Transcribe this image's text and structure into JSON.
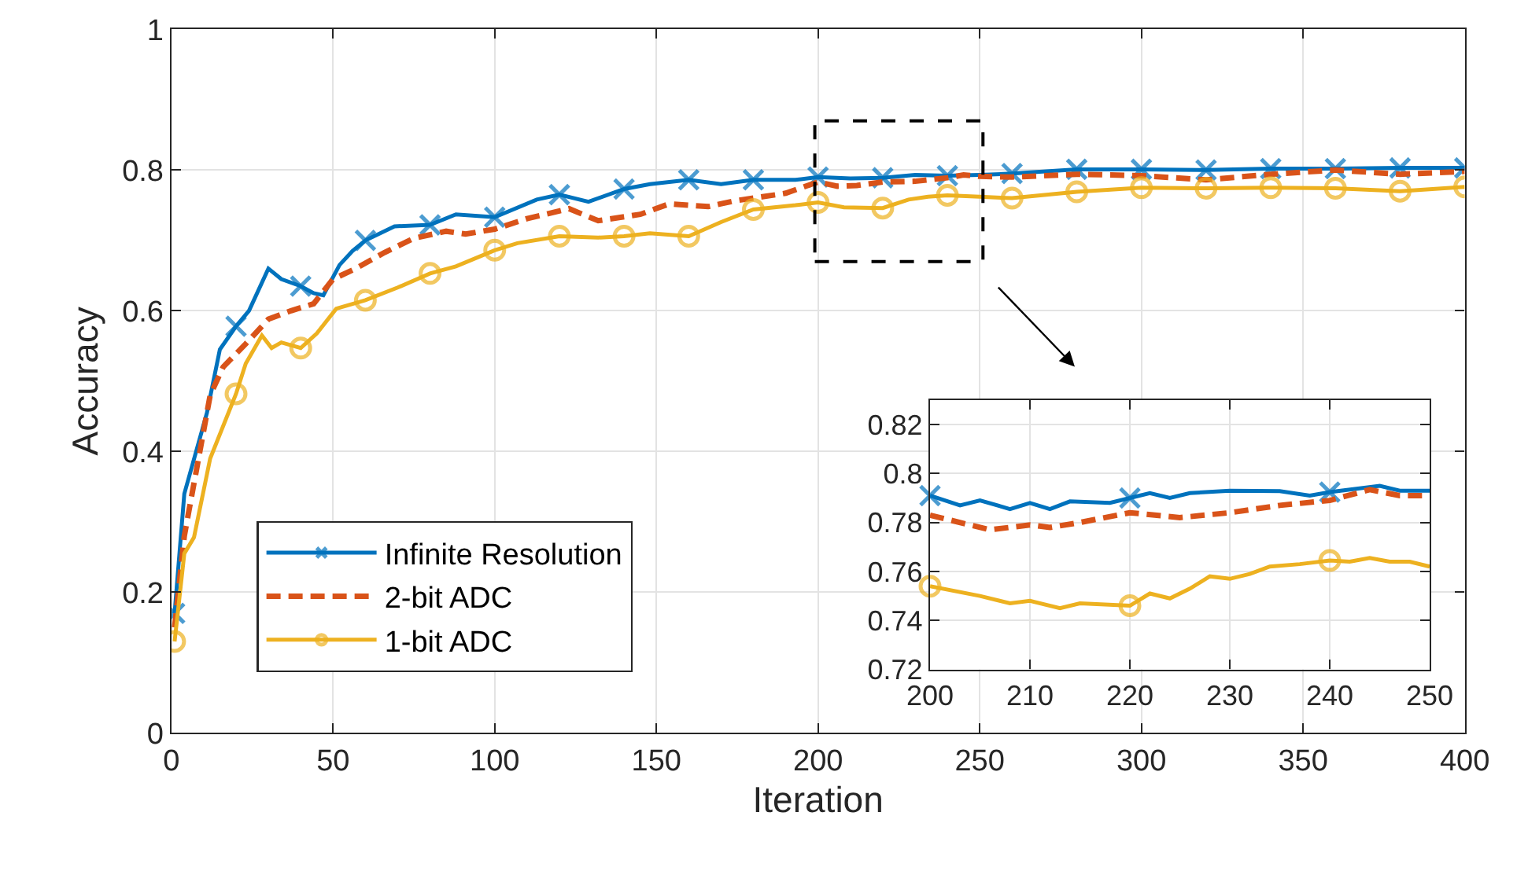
{
  "chart_data": [
    {
      "type": "line",
      "xlabel": "Iteration",
      "ylabel": "Accuracy",
      "xlim": [
        0,
        400
      ],
      "xticks": [
        0,
        50,
        100,
        150,
        200,
        250,
        300,
        350,
        400
      ],
      "ylim": [
        0,
        1
      ],
      "yticks": [
        0,
        0.2,
        0.4,
        0.6,
        0.8,
        1
      ],
      "grid": true,
      "legend": "bottom left",
      "series": [
        {
          "name": "Infinite Resolution",
          "color": "#0072bd",
          "marker": "cross",
          "line_style": "solid",
          "x": [
            1,
            4,
            11,
            15,
            20,
            24,
            30,
            34,
            40,
            44,
            47,
            52,
            56,
            60,
            69,
            80,
            88,
            100,
            113,
            120,
            129,
            140,
            148,
            160,
            170,
            180,
            193,
            200,
            210,
            220,
            230,
            240,
            250,
            260,
            280,
            300,
            320,
            340,
            360,
            380,
            400
          ],
          "values": [
            0.17,
            0.34,
            0.455,
            0.545,
            0.578,
            0.6,
            0.66,
            0.645,
            0.635,
            0.625,
            0.622,
            0.665,
            0.685,
            0.7,
            0.72,
            0.722,
            0.737,
            0.733,
            0.758,
            0.765,
            0.755,
            0.773,
            0.78,
            0.786,
            0.78,
            0.786,
            0.786,
            0.79,
            0.788,
            0.789,
            0.793,
            0.792,
            0.793,
            0.795,
            0.801,
            0.801,
            0.8,
            0.802,
            0.802,
            0.803,
            0.803
          ]
        },
        {
          "name": "2-bit ADC",
          "color": "#d95319",
          "marker": "none",
          "line_style": "dashed",
          "x": [
            1,
            4,
            8,
            12,
            16,
            23,
            30,
            37,
            44,
            50,
            57,
            66,
            75,
            85,
            91,
            100,
            110,
            123,
            132,
            145,
            154,
            166,
            174,
            190,
            198,
            200,
            206,
            212,
            220,
            230,
            240,
            245,
            250,
            260,
            280,
            300,
            320,
            340,
            360,
            380,
            400
          ],
          "values": [
            0.15,
            0.28,
            0.38,
            0.48,
            0.52,
            0.553,
            0.588,
            0.6,
            0.61,
            0.645,
            0.66,
            0.683,
            0.703,
            0.713,
            0.709,
            0.716,
            0.731,
            0.745,
            0.728,
            0.737,
            0.752,
            0.748,
            0.756,
            0.767,
            0.78,
            0.783,
            0.777,
            0.778,
            0.783,
            0.784,
            0.789,
            0.793,
            0.791,
            0.79,
            0.794,
            0.792,
            0.786,
            0.794,
            0.8,
            0.794,
            0.798
          ]
        },
        {
          "name": "1-bit ADC",
          "color": "#edb120",
          "marker": "circle",
          "line_style": "solid",
          "x": [
            1,
            4,
            7,
            12,
            20,
            23,
            28,
            31,
            34,
            40,
            45,
            51,
            60,
            70,
            80,
            88,
            100,
            107,
            120,
            132,
            140,
            148,
            160,
            170,
            180,
            193,
            200,
            208,
            220,
            228,
            234,
            240,
            250,
            260,
            280,
            300,
            320,
            340,
            360,
            380,
            400
          ],
          "values": [
            0.13,
            0.255,
            0.278,
            0.39,
            0.482,
            0.525,
            0.565,
            0.547,
            0.555,
            0.547,
            0.568,
            0.603,
            0.615,
            0.633,
            0.653,
            0.663,
            0.686,
            0.696,
            0.706,
            0.704,
            0.706,
            0.71,
            0.706,
            0.726,
            0.744,
            0.75,
            0.754,
            0.747,
            0.746,
            0.758,
            0.762,
            0.764,
            0.762,
            0.76,
            0.769,
            0.775,
            0.774,
            0.775,
            0.774,
            0.77,
            0.776
          ]
        }
      ]
    },
    {
      "type": "line",
      "xlim": [
        200,
        250
      ],
      "xticks": [
        200,
        210,
        220,
        230,
        240,
        250
      ],
      "ylim": [
        0.72,
        0.83
      ],
      "yticks": [
        0.72,
        0.74,
        0.76,
        0.78,
        0.8,
        0.82
      ],
      "grid": true,
      "series": [
        {
          "color": "#0072bd",
          "line_style": "solid",
          "x": [
            200,
            203,
            205,
            208,
            210,
            212,
            214,
            218,
            220,
            222,
            224,
            226,
            230,
            235,
            238,
            240,
            245,
            247,
            250
          ],
          "values": [
            0.791,
            0.787,
            0.789,
            0.7855,
            0.788,
            0.7855,
            0.7886,
            0.788,
            0.79,
            0.792,
            0.79,
            0.792,
            0.793,
            0.7928,
            0.791,
            0.7924,
            0.795,
            0.793,
            0.793
          ]
        },
        {
          "color": "#d95319",
          "line_style": "dashed",
          "x": [
            200,
            206,
            210,
            212,
            215,
            220,
            225,
            230,
            235,
            240,
            244,
            247,
            250
          ],
          "values": [
            0.783,
            0.777,
            0.779,
            0.778,
            0.78,
            0.784,
            0.782,
            0.784,
            0.787,
            0.789,
            0.7934,
            0.791,
            0.791
          ]
        },
        {
          "color": "#edb120",
          "line_style": "solid",
          "x": [
            200,
            205,
            208,
            210,
            213,
            215,
            220,
            222,
            224,
            226,
            228,
            230,
            232,
            234,
            237,
            240,
            242,
            244,
            246,
            248,
            250
          ],
          "values": [
            0.754,
            0.75,
            0.747,
            0.748,
            0.745,
            0.747,
            0.746,
            0.751,
            0.749,
            0.753,
            0.758,
            0.757,
            0.759,
            0.762,
            0.763,
            0.7645,
            0.764,
            0.7655,
            0.764,
            0.764,
            0.762
          ]
        }
      ]
    }
  ]
}
